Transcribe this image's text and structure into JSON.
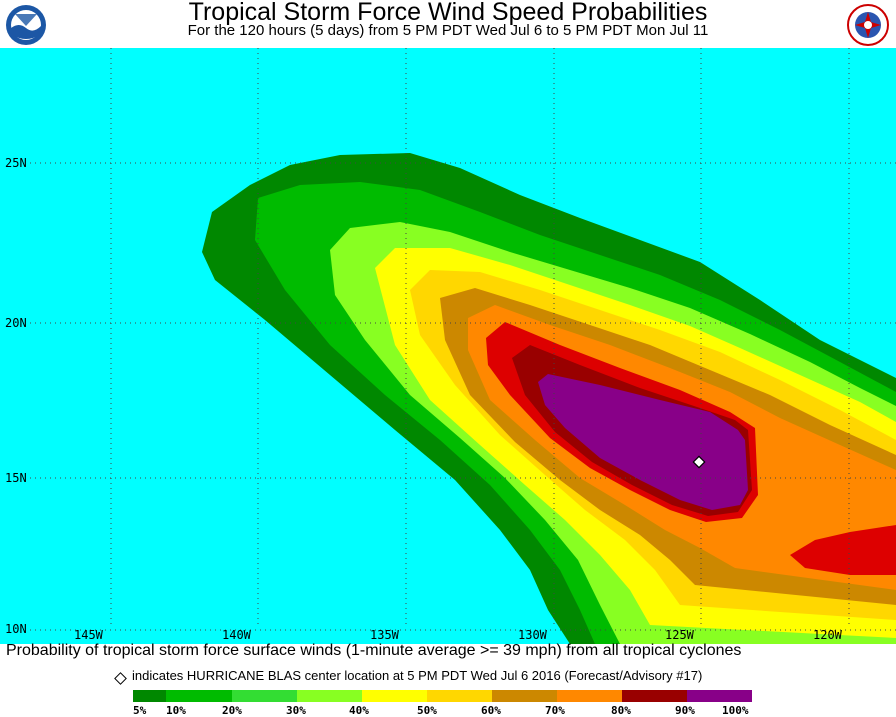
{
  "header": {
    "title": "Tropical Storm Force Wind Speed Probabilities",
    "subtitle": "For the 120 hours (5 days) from 5 PM PDT Wed Jul 6 to 5 PM PDT Mon Jul 11",
    "left_logo": "noaa-logo",
    "right_logo": "nws-logo"
  },
  "map": {
    "background_color": "#00ffff",
    "lat_labels": [
      "25N",
      "20N",
      "15N",
      "10N"
    ],
    "lon_labels": [
      "145W",
      "140W",
      "135W",
      "130W",
      "125W",
      "120W"
    ],
    "storm_center_marker": "diamond-marker"
  },
  "footer": {
    "caption": "Probability of tropical storm force surface winds (1-minute average >= 39 mph) from all tropical cyclones",
    "center_note": "indicates HURRICANE BLAS center location at 5 PM PDT Wed Jul 6 2016 (Forecast/Advisory #17)"
  },
  "legend": {
    "labels": [
      "5%",
      "10%",
      "20%",
      "30%",
      "40%",
      "50%",
      "60%",
      "70%",
      "80%",
      "90%",
      "100%"
    ],
    "colors": [
      "#008800",
      "#00bb00",
      "#33dd33",
      "#88ff22",
      "#ffff00",
      "#ffd700",
      "#cc8800",
      "#ff8800",
      "#dd0000",
      "#990000",
      "#880088"
    ]
  }
}
